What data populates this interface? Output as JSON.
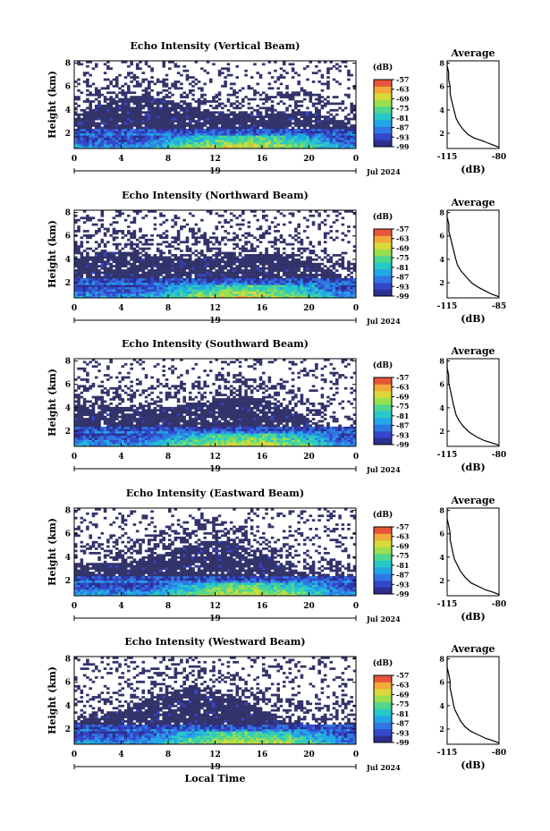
{
  "chart_data": [
    {
      "type": "heatmap",
      "title": "Echo Intensity (Vertical Beam)",
      "ylabel": "Height (km)",
      "x_ticks": [
        "0",
        "4",
        "8",
        "12",
        "16",
        "20",
        "0"
      ],
      "day_label": "19",
      "date_label": "Jul 2024",
      "xlim": [
        0,
        24
      ],
      "y_ticks": [
        "2",
        "4",
        "6",
        "8"
      ],
      "ylim": [
        0.7,
        8.2
      ],
      "colorbar_unit": "(dB)",
      "colorbar_ticks": [
        "-57",
        "-63",
        "-69",
        "-75",
        "-81",
        "-87",
        "-93",
        "-99"
      ],
      "average": {
        "title": "Average",
        "xlabel": "(dB)",
        "x_ticks": [
          "-115",
          "-80"
        ],
        "xlim": [
          -115,
          -80
        ],
        "y_ticks": [
          "2",
          "4",
          "6",
          "8"
        ],
        "profile": [
          [
            -80,
            0.8
          ],
          [
            -84,
            1.0
          ],
          [
            -88,
            1.2
          ],
          [
            -92,
            1.4
          ],
          [
            -97,
            1.6
          ],
          [
            -101,
            1.9
          ],
          [
            -104,
            2.3
          ],
          [
            -107,
            2.8
          ],
          [
            -109,
            3.3
          ],
          [
            -110,
            3.8
          ],
          [
            -111,
            4.3
          ],
          [
            -112,
            4.8
          ],
          [
            -113,
            5.4
          ],
          [
            -113,
            6.0
          ],
          [
            -114,
            6.6
          ],
          [
            -114,
            7.2
          ],
          [
            -115,
            7.8
          ],
          [
            -115,
            8.2
          ]
        ]
      }
    },
    {
      "type": "heatmap",
      "title": "Echo Intensity (Northward Beam)",
      "ylabel": "Height (km)",
      "x_ticks": [
        "0",
        "4",
        "8",
        "12",
        "16",
        "20",
        "0"
      ],
      "day_label": "19",
      "date_label": "Jul 2024",
      "xlim": [
        0,
        24
      ],
      "y_ticks": [
        "2",
        "4",
        "6",
        "8"
      ],
      "ylim": [
        0.7,
        8.2
      ],
      "colorbar_unit": "(dB)",
      "colorbar_ticks": [
        "-57",
        "-63",
        "-69",
        "-75",
        "-81",
        "-87",
        "-93",
        "-99"
      ],
      "average": {
        "title": "Average",
        "xlabel": "(dB)",
        "x_ticks": [
          "-115",
          "-85"
        ],
        "xlim": [
          -115,
          -85
        ],
        "y_ticks": [
          "2",
          "4",
          "6",
          "8"
        ],
        "profile": [
          [
            -85,
            0.8
          ],
          [
            -89,
            1.0
          ],
          [
            -93,
            1.3
          ],
          [
            -97,
            1.6
          ],
          [
            -101,
            2.0
          ],
          [
            -104,
            2.5
          ],
          [
            -107,
            3.0
          ],
          [
            -109,
            3.5
          ],
          [
            -110,
            4.0
          ],
          [
            -111,
            4.6
          ],
          [
            -112,
            5.2
          ],
          [
            -113,
            5.8
          ],
          [
            -114,
            6.4
          ],
          [
            -114,
            7.0
          ],
          [
            -115,
            7.6
          ],
          [
            -115,
            8.2
          ]
        ]
      }
    },
    {
      "type": "heatmap",
      "title": "Echo Intensity (Southward Beam)",
      "ylabel": "Height (km)",
      "x_ticks": [
        "0",
        "4",
        "8",
        "12",
        "16",
        "20",
        "0"
      ],
      "day_label": "19",
      "date_label": "Jul 2024",
      "xlim": [
        0,
        24
      ],
      "y_ticks": [
        "2",
        "4",
        "6",
        "8"
      ],
      "ylim": [
        0.7,
        8.2
      ],
      "colorbar_unit": "(dB)",
      "colorbar_ticks": [
        "-57",
        "-63",
        "-69",
        "-75",
        "-81",
        "-87",
        "-93",
        "-99"
      ],
      "average": {
        "title": "Average",
        "xlabel": "(dB)",
        "x_ticks": [
          "-115",
          "-80"
        ],
        "xlim": [
          -115,
          -80
        ],
        "y_ticks": [
          "2",
          "4",
          "6",
          "8"
        ],
        "profile": [
          [
            -80,
            0.8
          ],
          [
            -85,
            1.0
          ],
          [
            -90,
            1.2
          ],
          [
            -95,
            1.5
          ],
          [
            -100,
            1.9
          ],
          [
            -104,
            2.4
          ],
          [
            -107,
            2.9
          ],
          [
            -109,
            3.4
          ],
          [
            -110,
            3.9
          ],
          [
            -111,
            4.4
          ],
          [
            -112,
            5.0
          ],
          [
            -113,
            5.6
          ],
          [
            -114,
            6.2
          ],
          [
            -114,
            6.8
          ],
          [
            -115,
            7.4
          ],
          [
            -115,
            8.2
          ]
        ]
      }
    },
    {
      "type": "heatmap",
      "title": "Echo Intensity (Eastward Beam)",
      "ylabel": "Height (km)",
      "x_ticks": [
        "0",
        "4",
        "8",
        "12",
        "16",
        "20",
        "0"
      ],
      "day_label": "19",
      "date_label": "Jul 2024",
      "xlim": [
        0,
        24
      ],
      "y_ticks": [
        "2",
        "4",
        "6",
        "8"
      ],
      "ylim": [
        0.7,
        8.2
      ],
      "colorbar_unit": "(dB)",
      "colorbar_ticks": [
        "-57",
        "-63",
        "-69",
        "-75",
        "-81",
        "-87",
        "-93",
        "-99"
      ],
      "average": {
        "title": "Average",
        "xlabel": "(dB)",
        "x_ticks": [
          "-115",
          "-80"
        ],
        "xlim": [
          -115,
          -80
        ],
        "y_ticks": [
          "2",
          "4",
          "6",
          "8"
        ],
        "profile": [
          [
            -80,
            0.8
          ],
          [
            -84,
            1.0
          ],
          [
            -89,
            1.2
          ],
          [
            -94,
            1.5
          ],
          [
            -99,
            1.8
          ],
          [
            -103,
            2.3
          ],
          [
            -106,
            2.8
          ],
          [
            -108,
            3.3
          ],
          [
            -110,
            3.8
          ],
          [
            -111,
            4.3
          ],
          [
            -112,
            4.9
          ],
          [
            -113,
            5.5
          ],
          [
            -113,
            6.1
          ],
          [
            -114,
            6.7
          ],
          [
            -115,
            7.3
          ],
          [
            -115,
            8.2
          ]
        ]
      }
    },
    {
      "type": "heatmap",
      "title": "Echo Intensity (Westward Beam)",
      "ylabel": "Height (km)",
      "x_ticks": [
        "0",
        "4",
        "8",
        "12",
        "16",
        "20",
        "0"
      ],
      "day_label": "19",
      "date_label": "Jul 2024",
      "xlabel": "Local Time",
      "xlim": [
        0,
        24
      ],
      "y_ticks": [
        "2",
        "4",
        "6",
        "8"
      ],
      "ylim": [
        0.7,
        8.2
      ],
      "colorbar_unit": "(dB)",
      "colorbar_ticks": [
        "-57",
        "-63",
        "-69",
        "-75",
        "-81",
        "-87",
        "-93",
        "-99"
      ],
      "average": {
        "title": "Average",
        "xlabel": "(dB)",
        "x_ticks": [
          "-115",
          "-80"
        ],
        "xlim": [
          -115,
          -80
        ],
        "y_ticks": [
          "2",
          "4",
          "6",
          "8"
        ],
        "profile": [
          [
            -80,
            0.8
          ],
          [
            -84,
            1.0
          ],
          [
            -89,
            1.2
          ],
          [
            -94,
            1.5
          ],
          [
            -99,
            1.8
          ],
          [
            -103,
            2.2
          ],
          [
            -106,
            2.7
          ],
          [
            -108,
            3.2
          ],
          [
            -110,
            3.7
          ],
          [
            -111,
            4.3
          ],
          [
            -112,
            4.9
          ],
          [
            -113,
            5.5
          ],
          [
            -113,
            6.1
          ],
          [
            -114,
            6.7
          ],
          [
            -115,
            7.3
          ],
          [
            -115,
            8.2
          ]
        ]
      }
    }
  ],
  "colors": {
    "background_echo": "#33336b",
    "colormap": [
      "#2b2f8f",
      "#3446c9",
      "#2f78e3",
      "#23a6e6",
      "#26c9c9",
      "#4fd68f",
      "#9adf50",
      "#d9d93a",
      "#f2a93a",
      "#e8553a"
    ]
  }
}
